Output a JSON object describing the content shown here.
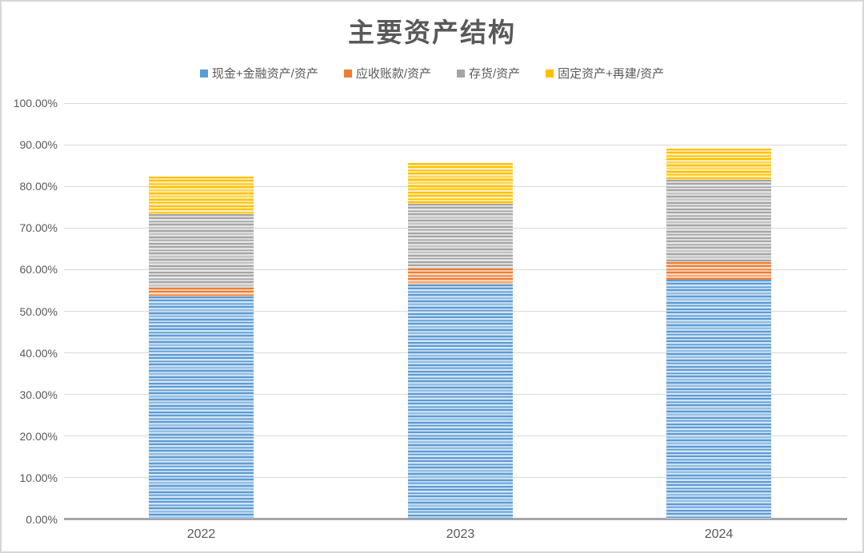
{
  "title": "主要资产结构",
  "chart_data": {
    "type": "bar",
    "stacked": true,
    "title": "主要资产结构",
    "categories": [
      "2022",
      "2023",
      "2024"
    ],
    "series": [
      {
        "name": "现金+金融资产/资产",
        "color": "#5B9BD5",
        "values": [
          53.3,
          56.3,
          57.4
        ]
      },
      {
        "name": "应收账款/资产",
        "color": "#ED7D31",
        "values": [
          2.1,
          3.7,
          4.2
        ]
      },
      {
        "name": "存货/资产",
        "color": "#A5A5A5",
        "values": [
          17.7,
          15.7,
          19.7
        ]
      },
      {
        "name": "固定资产+再建/资产",
        "color": "#FFC000",
        "values": [
          9.0,
          9.8,
          7.5
        ]
      }
    ],
    "stack_totals": [
      82.1,
      85.5,
      88.8
    ],
    "xlabel": "",
    "ylabel": "",
    "ylim": [
      0,
      100
    ],
    "ytick_labels": [
      "0.00%",
      "10.00%",
      "20.00%",
      "30.00%",
      "40.00%",
      "50.00%",
      "60.00%",
      "70.00%",
      "80.00%",
      "90.00%",
      "100.00%"
    ],
    "grid": true,
    "legend_position": "top"
  },
  "colors": {
    "text": "#595959",
    "gridline": "#d9d9d9",
    "axis_line": "#a6a6a6",
    "border": "#d6d6d6",
    "background": "#ffffff"
  }
}
